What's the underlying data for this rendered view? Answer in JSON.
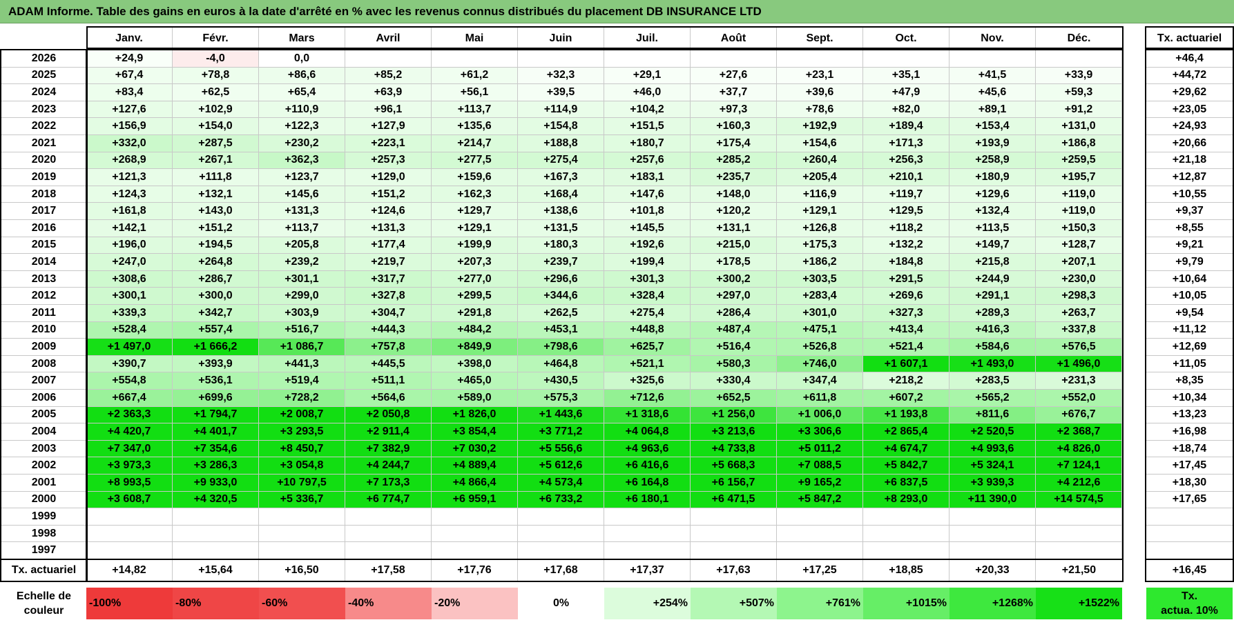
{
  "title": "ADAM Informe. Table des gains en euros à la date d'arrêté en % avec les revenus connus distribués du placement DB INSURANCE LTD",
  "months": [
    "Janv.",
    "Févr.",
    "Mars",
    "Avril",
    "Mai",
    "Juin",
    "Juil.",
    "Août",
    "Sept.",
    "Oct.",
    "Nov.",
    "Déc."
  ],
  "tx_header": "Tx. actuariel",
  "rows": [
    {
      "year": "2026",
      "cells": [
        "+24,9",
        "-4,0",
        "0,0",
        "",
        "",
        "",
        "",
        "",
        "",
        "",
        "",
        ""
      ],
      "tx": "+46,4"
    },
    {
      "year": "2025",
      "cells": [
        "+67,4",
        "+78,8",
        "+86,6",
        "+85,2",
        "+61,2",
        "+32,3",
        "+29,1",
        "+27,6",
        "+23,1",
        "+35,1",
        "+41,5",
        "+33,9"
      ],
      "tx": "+44,72"
    },
    {
      "year": "2024",
      "cells": [
        "+83,4",
        "+62,5",
        "+65,4",
        "+63,9",
        "+56,1",
        "+39,5",
        "+46,0",
        "+37,7",
        "+39,6",
        "+47,9",
        "+45,6",
        "+59,3"
      ],
      "tx": "+29,62"
    },
    {
      "year": "2023",
      "cells": [
        "+127,6",
        "+102,9",
        "+110,9",
        "+96,1",
        "+113,7",
        "+114,9",
        "+104,2",
        "+97,3",
        "+78,6",
        "+82,0",
        "+89,1",
        "+91,2"
      ],
      "tx": "+23,05"
    },
    {
      "year": "2022",
      "cells": [
        "+156,9",
        "+154,0",
        "+122,3",
        "+127,9",
        "+135,6",
        "+154,8",
        "+151,5",
        "+160,3",
        "+192,9",
        "+189,4",
        "+153,4",
        "+131,0"
      ],
      "tx": "+24,93"
    },
    {
      "year": "2021",
      "cells": [
        "+332,0",
        "+287,5",
        "+230,2",
        "+223,1",
        "+214,7",
        "+188,8",
        "+180,7",
        "+175,4",
        "+154,6",
        "+171,3",
        "+193,9",
        "+186,8"
      ],
      "tx": "+20,66"
    },
    {
      "year": "2020",
      "cells": [
        "+268,9",
        "+267,1",
        "+362,3",
        "+257,3",
        "+277,5",
        "+275,4",
        "+257,6",
        "+285,2",
        "+260,4",
        "+256,3",
        "+258,9",
        "+259,5"
      ],
      "tx": "+21,18"
    },
    {
      "year": "2019",
      "cells": [
        "+121,3",
        "+111,8",
        "+123,7",
        "+129,0",
        "+159,6",
        "+167,3",
        "+183,1",
        "+235,7",
        "+205,4",
        "+210,1",
        "+180,9",
        "+195,7"
      ],
      "tx": "+12,87"
    },
    {
      "year": "2018",
      "cells": [
        "+124,3",
        "+132,1",
        "+145,6",
        "+151,2",
        "+162,3",
        "+168,4",
        "+147,6",
        "+148,0",
        "+116,9",
        "+119,7",
        "+129,6",
        "+119,0"
      ],
      "tx": "+10,55"
    },
    {
      "year": "2017",
      "cells": [
        "+161,8",
        "+143,0",
        "+131,3",
        "+124,6",
        "+129,7",
        "+138,6",
        "+101,8",
        "+120,2",
        "+129,1",
        "+129,5",
        "+132,4",
        "+119,0"
      ],
      "tx": "+9,37"
    },
    {
      "year": "2016",
      "cells": [
        "+142,1",
        "+151,2",
        "+113,7",
        "+131,3",
        "+129,1",
        "+131,5",
        "+145,5",
        "+131,1",
        "+126,8",
        "+118,2",
        "+113,5",
        "+150,3"
      ],
      "tx": "+8,55"
    },
    {
      "year": "2015",
      "cells": [
        "+196,0",
        "+194,5",
        "+205,8",
        "+177,4",
        "+199,9",
        "+180,3",
        "+192,6",
        "+215,0",
        "+175,3",
        "+132,2",
        "+149,7",
        "+128,7"
      ],
      "tx": "+9,21"
    },
    {
      "year": "2014",
      "cells": [
        "+247,0",
        "+264,8",
        "+239,2",
        "+219,7",
        "+207,3",
        "+239,7",
        "+199,4",
        "+178,5",
        "+186,2",
        "+184,8",
        "+215,8",
        "+207,1"
      ],
      "tx": "+9,79"
    },
    {
      "year": "2013",
      "cells": [
        "+308,6",
        "+286,7",
        "+301,1",
        "+317,7",
        "+277,0",
        "+296,6",
        "+301,3",
        "+300,2",
        "+303,5",
        "+291,5",
        "+244,9",
        "+230,0"
      ],
      "tx": "+10,64"
    },
    {
      "year": "2012",
      "cells": [
        "+300,1",
        "+300,0",
        "+299,0",
        "+327,8",
        "+299,5",
        "+344,6",
        "+328,4",
        "+297,0",
        "+283,4",
        "+269,6",
        "+291,1",
        "+298,3"
      ],
      "tx": "+10,05"
    },
    {
      "year": "2011",
      "cells": [
        "+339,3",
        "+342,7",
        "+303,9",
        "+304,7",
        "+291,8",
        "+262,5",
        "+275,4",
        "+286,4",
        "+301,0",
        "+327,3",
        "+289,3",
        "+263,7"
      ],
      "tx": "+9,54"
    },
    {
      "year": "2010",
      "cells": [
        "+528,4",
        "+557,4",
        "+516,7",
        "+444,3",
        "+484,2",
        "+453,1",
        "+448,8",
        "+487,4",
        "+475,1",
        "+413,4",
        "+416,3",
        "+337,8"
      ],
      "tx": "+11,12"
    },
    {
      "year": "2009",
      "cells": [
        "+1 497,0",
        "+1 666,2",
        "+1 086,7",
        "+757,8",
        "+849,9",
        "+798,6",
        "+625,7",
        "+516,4",
        "+526,8",
        "+521,4",
        "+584,6",
        "+576,5"
      ],
      "tx": "+12,69"
    },
    {
      "year": "2008",
      "cells": [
        "+390,7",
        "+393,9",
        "+441,3",
        "+445,5",
        "+398,0",
        "+464,8",
        "+521,1",
        "+580,3",
        "+746,0",
        "+1 607,1",
        "+1 493,0",
        "+1 496,0"
      ],
      "tx": "+11,05"
    },
    {
      "year": "2007",
      "cells": [
        "+554,8",
        "+536,1",
        "+519,4",
        "+511,1",
        "+465,0",
        "+430,5",
        "+325,6",
        "+330,4",
        "+347,4",
        "+218,2",
        "+283,5",
        "+231,3"
      ],
      "tx": "+8,35"
    },
    {
      "year": "2006",
      "cells": [
        "+667,4",
        "+699,6",
        "+728,2",
        "+564,6",
        "+589,0",
        "+575,3",
        "+712,6",
        "+652,5",
        "+611,8",
        "+607,2",
        "+565,2",
        "+552,0"
      ],
      "tx": "+10,34"
    },
    {
      "year": "2005",
      "cells": [
        "+2 363,3",
        "+1 794,7",
        "+2 008,7",
        "+2 050,8",
        "+1 826,0",
        "+1 443,6",
        "+1 318,6",
        "+1 256,0",
        "+1 006,0",
        "+1 193,8",
        "+811,6",
        "+676,7"
      ],
      "tx": "+13,23"
    },
    {
      "year": "2004",
      "cells": [
        "+4 420,7",
        "+4 401,7",
        "+3 293,5",
        "+2 911,4",
        "+3 854,4",
        "+3 771,2",
        "+4 064,8",
        "+3 213,6",
        "+3 306,6",
        "+2 865,4",
        "+2 520,5",
        "+2 368,7"
      ],
      "tx": "+16,98"
    },
    {
      "year": "2003",
      "cells": [
        "+7 347,0",
        "+7 354,6",
        "+8 450,7",
        "+7 382,9",
        "+7 030,2",
        "+5 556,6",
        "+4 963,6",
        "+4 733,8",
        "+5 011,2",
        "+4 674,7",
        "+4 993,6",
        "+4 826,0"
      ],
      "tx": "+18,74"
    },
    {
      "year": "2002",
      "cells": [
        "+3 973,3",
        "+3 286,3",
        "+3 054,8",
        "+4 244,7",
        "+4 889,4",
        "+5 612,6",
        "+6 416,6",
        "+5 668,3",
        "+7 088,5",
        "+5 842,7",
        "+5 324,1",
        "+7 124,1"
      ],
      "tx": "+17,45"
    },
    {
      "year": "2001",
      "cells": [
        "+8 993,5",
        "+9 933,0",
        "+10 797,5",
        "+7 173,3",
        "+4 866,4",
        "+4 573,4",
        "+6 164,8",
        "+6 156,7",
        "+9 165,2",
        "+6 837,5",
        "+3 939,3",
        "+4 212,6"
      ],
      "tx": "+18,30"
    },
    {
      "year": "2000",
      "cells": [
        "+3 608,7",
        "+4 320,5",
        "+5 336,7",
        "+6 774,7",
        "+6 959,1",
        "+6 733,2",
        "+6 180,1",
        "+6 471,5",
        "+5 847,2",
        "+8 293,0",
        "+11 390,0",
        "+14 574,5"
      ],
      "tx": "+17,65"
    },
    {
      "year": "1999",
      "cells": [
        "",
        "",
        "",
        "",
        "",
        "",
        "",
        "",
        "",
        "",
        "",
        ""
      ],
      "tx": ""
    },
    {
      "year": "1998",
      "cells": [
        "",
        "",
        "",
        "",
        "",
        "",
        "",
        "",
        "",
        "",
        "",
        ""
      ],
      "tx": ""
    },
    {
      "year": "1997",
      "cells": [
        "",
        "",
        "",
        "",
        "",
        "",
        "",
        "",
        "",
        "",
        "",
        ""
      ],
      "tx": ""
    }
  ],
  "footer": {
    "label": "Tx. actuariel",
    "values": [
      "+14,82",
      "+15,64",
      "+16,50",
      "+17,58",
      "+17,76",
      "+17,68",
      "+17,37",
      "+17,63",
      "+17,25",
      "+18,85",
      "+20,33",
      "+21,50"
    ],
    "tx": "+16,45"
  },
  "legend": {
    "label_line1": "Echelle de",
    "label_line2": "couleur",
    "items": [
      {
        "text": "-100%",
        "color": "#ee3a3a",
        "align": "left"
      },
      {
        "text": "-80%",
        "color": "#ef4646",
        "align": "left"
      },
      {
        "text": "-60%",
        "color": "#f14f4f",
        "align": "left"
      },
      {
        "text": "-40%",
        "color": "#f78a8a",
        "align": "left"
      },
      {
        "text": "-20%",
        "color": "#fbc2c2",
        "align": "left"
      },
      {
        "text": "0%",
        "color": "#ffffff",
        "align": "center"
      },
      {
        "text": "+254%",
        "color": "#dcfcdc",
        "align": "right"
      },
      {
        "text": "+507%",
        "color": "#b4f8b4",
        "align": "right"
      },
      {
        "text": "+761%",
        "color": "#8df48d",
        "align": "right"
      },
      {
        "text": "+1015%",
        "color": "#66ee66",
        "align": "right"
      },
      {
        "text": "+1268%",
        "color": "#3ee83e",
        "align": "right"
      },
      {
        "text": "+1522%",
        "color": "#17e017",
        "align": "right"
      }
    ],
    "tx_line1": "Tx.",
    "tx_line2": "actua. 10%",
    "tx_color": "#2ee82e"
  },
  "colors": {
    "title_bg": "#88c97e",
    "grid_line": "#c8c8c8",
    "frame": "#000000"
  }
}
